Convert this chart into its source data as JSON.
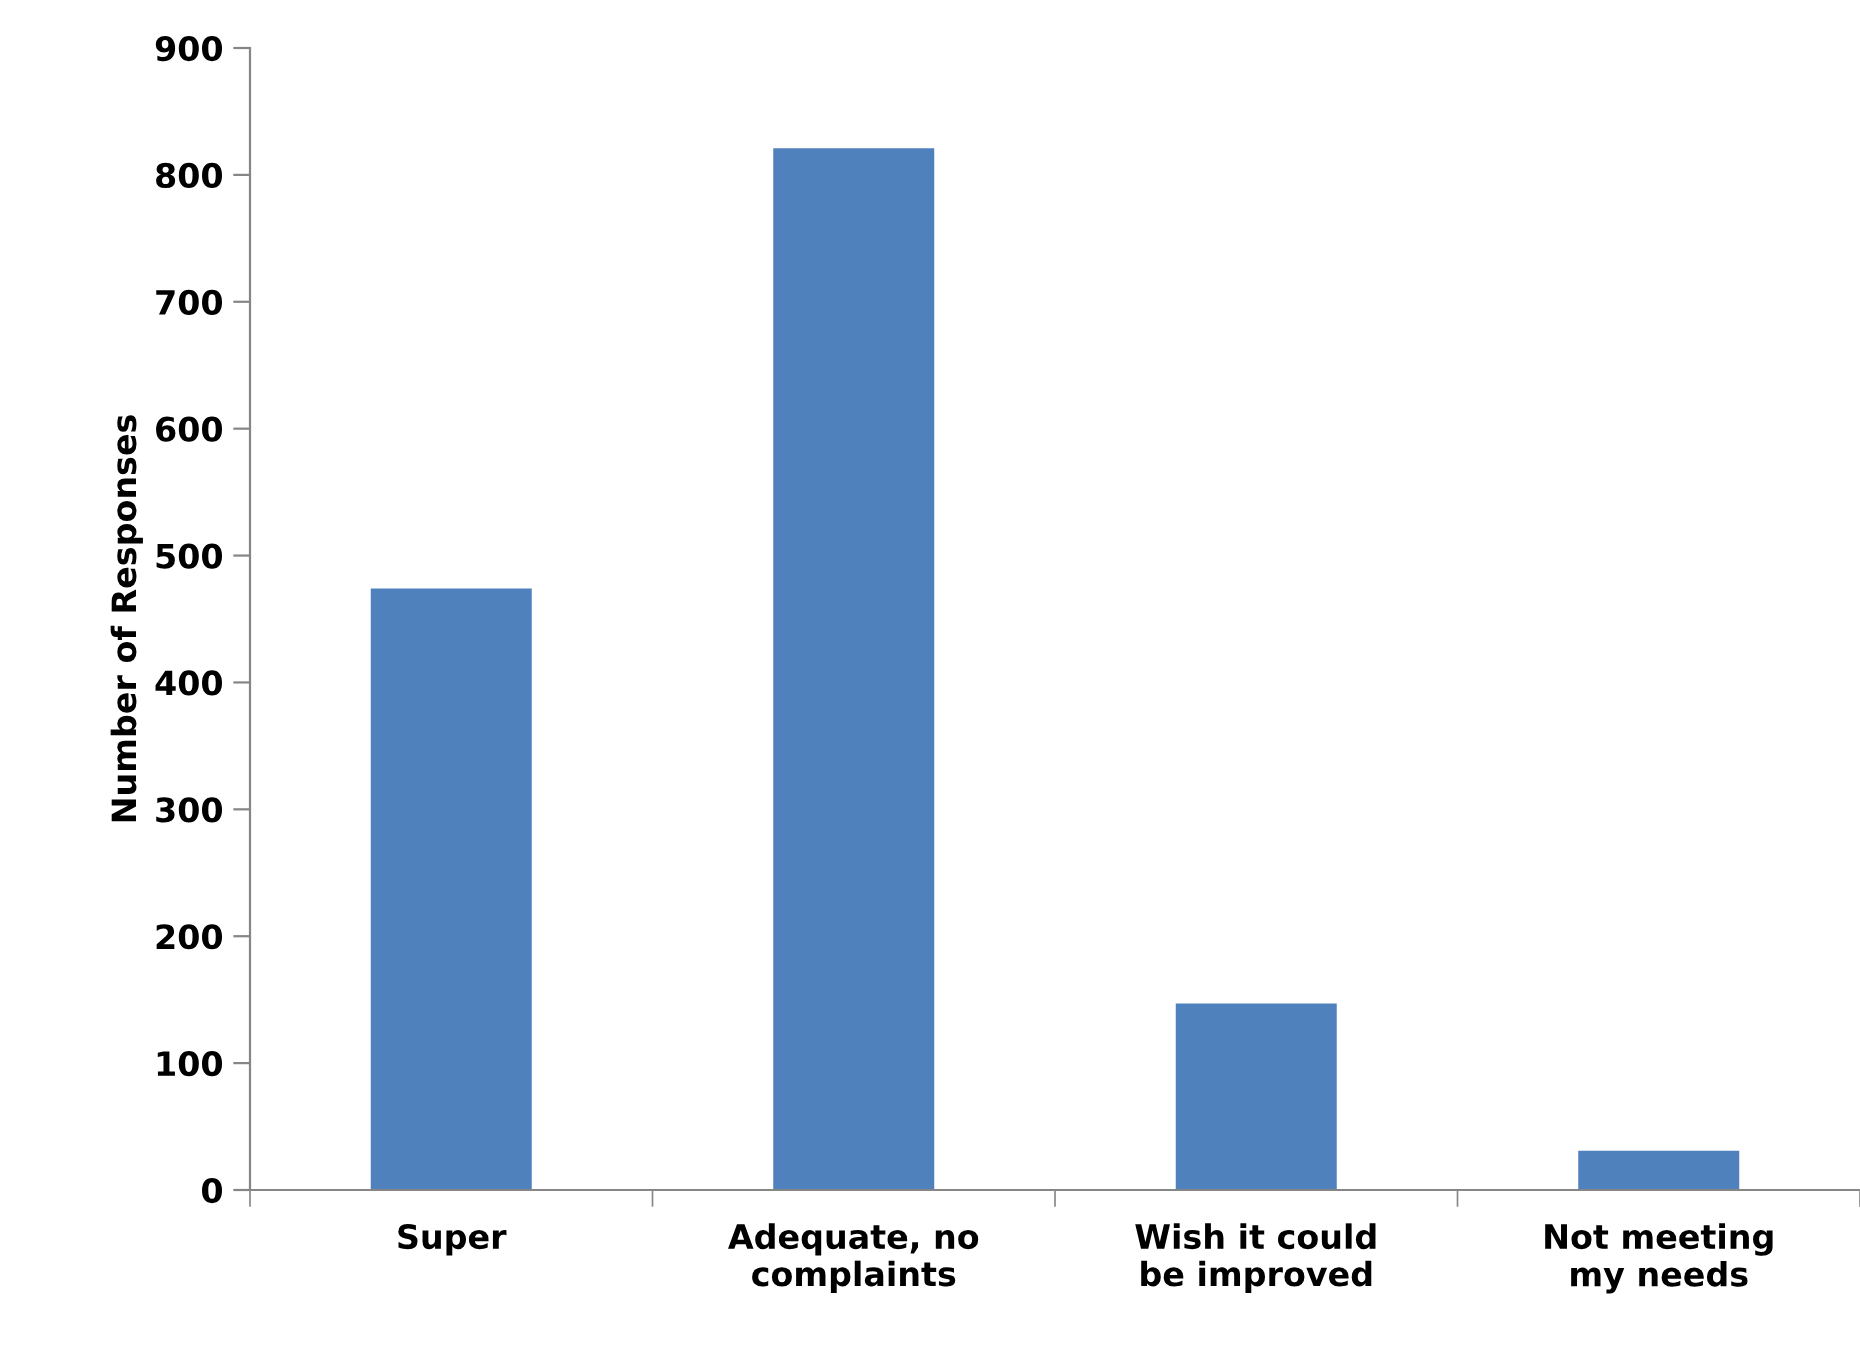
{
  "chart_data": {
    "type": "bar",
    "ylabel": "Number of Responses",
    "categories": [
      "Super",
      "Adequate, no complaints",
      "Wish it could be improved",
      "Not meeting my needs"
    ],
    "values": [
      474,
      821,
      147,
      31
    ],
    "color": "#4f81bd",
    "ylim": [
      0,
      900
    ],
    "yticks": [
      0,
      100,
      200,
      300,
      400,
      500,
      600,
      700,
      800,
      900
    ],
    "grid": false
  }
}
